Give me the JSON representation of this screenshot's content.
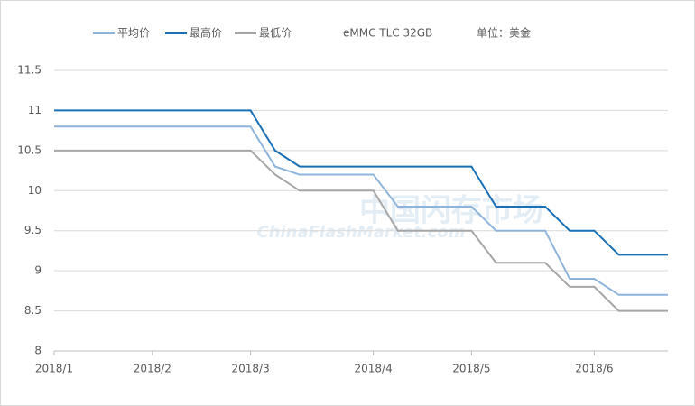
{
  "chart_data": {
    "type": "line",
    "annotations": [
      "eMMC TLC 32GB",
      "单位：美金"
    ],
    "watermark": [
      "中国闪存市场",
      "ChinaFlashMarket.com"
    ],
    "categories": [
      "2018/1",
      null,
      null,
      null,
      "2018/2",
      null,
      null,
      null,
      "2018/3",
      null,
      null,
      null,
      null,
      "2018/4",
      null,
      null,
      null,
      "2018/5",
      null,
      null,
      null,
      null,
      "2018/6",
      null,
      null,
      null
    ],
    "series": [
      {
        "name": "平均价",
        "color": "#8fb4dc",
        "values": [
          10.8,
          10.8,
          10.8,
          10.8,
          10.8,
          10.8,
          10.8,
          10.8,
          10.8,
          10.3,
          10.2,
          10.2,
          10.2,
          10.2,
          9.8,
          9.8,
          9.8,
          9.8,
          9.5,
          9.5,
          9.5,
          8.9,
          8.9,
          8.7,
          8.7,
          8.7
        ]
      },
      {
        "name": "最高价",
        "color": "#1a6fb5",
        "values": [
          11,
          11,
          11,
          11,
          11,
          11,
          11,
          11,
          11,
          10.5,
          10.3,
          10.3,
          10.3,
          10.3,
          10.3,
          10.3,
          10.3,
          10.3,
          9.8,
          9.8,
          9.8,
          9.5,
          9.5,
          9.2,
          9.2,
          9.2
        ]
      },
      {
        "name": "最低价",
        "color": "#a6a6a6",
        "values": [
          10.5,
          10.5,
          10.5,
          10.5,
          10.5,
          10.5,
          10.5,
          10.5,
          10.5,
          10.2,
          10,
          10,
          10,
          10,
          9.5,
          9.5,
          9.5,
          9.5,
          9.1,
          9.1,
          9.1,
          8.8,
          8.8,
          8.5,
          8.5,
          8.5
        ]
      }
    ],
    "ylim": [
      8,
      11.5
    ],
    "yticks": [
      8,
      8.5,
      9,
      9.5,
      10,
      10.5,
      11,
      11.5
    ],
    "grid": true
  }
}
